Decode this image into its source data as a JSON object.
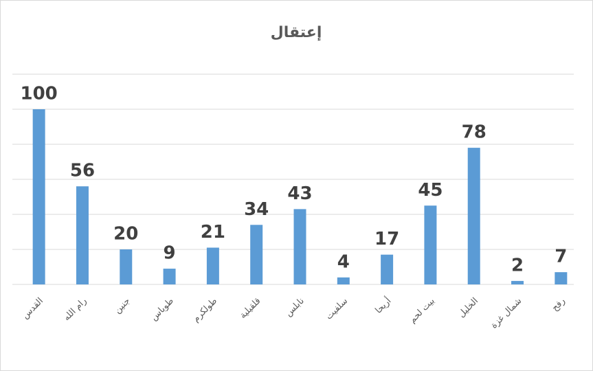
{
  "chart_data": {
    "type": "bar",
    "title": "إعتقال",
    "categories": [
      "القدس",
      "رام الله",
      "جنين",
      "طوباس",
      "طولكرم",
      "قلقيلية",
      "نابلس",
      "سلفيت",
      "أريحا",
      "بيت لحم",
      "الخليل",
      "شمال غزة",
      "رفح"
    ],
    "values": [
      100,
      56,
      20,
      9,
      21,
      34,
      43,
      4,
      17,
      45,
      78,
      2,
      7
    ],
    "color": "#5b9bd5",
    "ylim": [
      0,
      120
    ],
    "yticks": [
      0,
      20,
      40,
      60,
      80,
      100,
      120
    ],
    "grid": true,
    "show_tick_labels": false,
    "data_labels": true
  }
}
